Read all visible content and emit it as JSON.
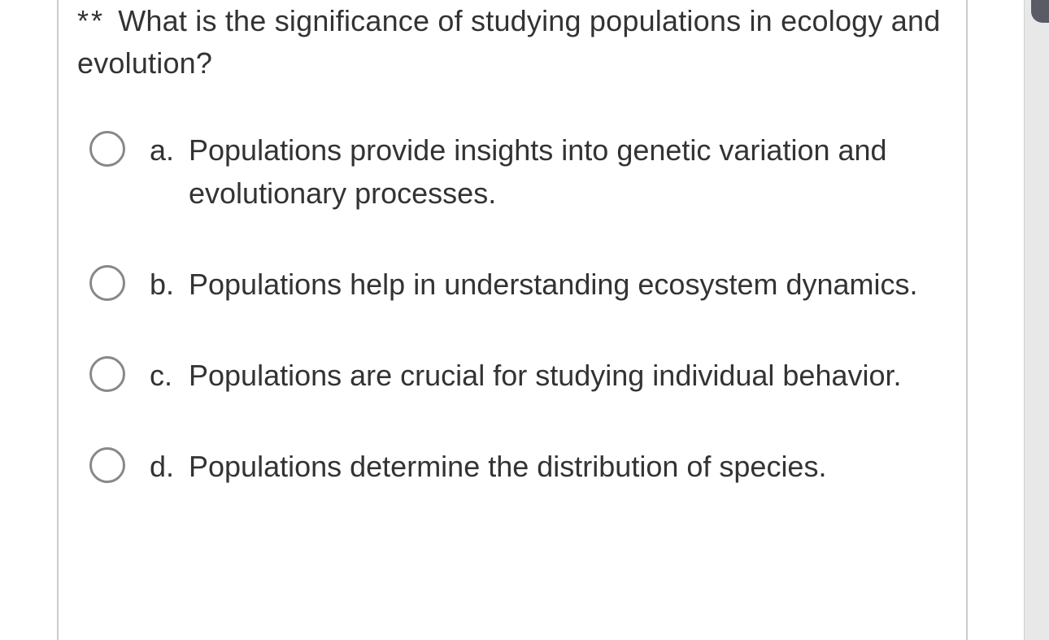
{
  "question": {
    "prefix": "**",
    "text": "What is the significance of studying populations in ecology and evolution?"
  },
  "options": [
    {
      "letter": "a.",
      "text": "Populations provide insights into genetic variation and evolutionary processes."
    },
    {
      "letter": "b.",
      "text": "Populations help in understanding ecosystem dynamics."
    },
    {
      "letter": "c.",
      "text": "Populations are crucial for studying individual behavior."
    },
    {
      "letter": "d.",
      "text": "Populations determine the distribution of species."
    }
  ],
  "colors": {
    "page_bg": "#e8e8e8",
    "card_bg": "#ffffff",
    "border": "#cccccc",
    "text": "#333333",
    "radio_border": "#888888",
    "side_tab": "#5b5b66"
  },
  "typography": {
    "question_fontsize": 36,
    "option_fontsize": 36,
    "line_height": 1.45
  }
}
